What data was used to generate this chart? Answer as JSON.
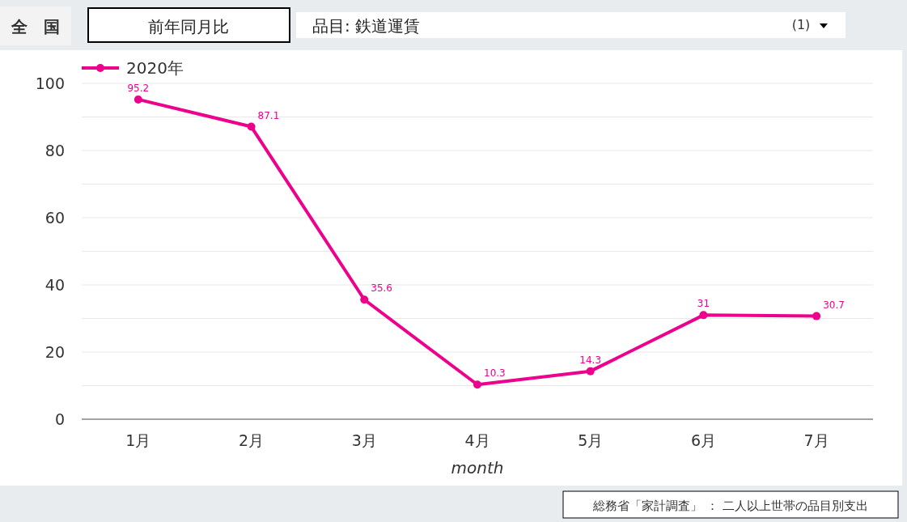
{
  "chart_data": {
    "type": "line",
    "xlabel": "month",
    "categories": [
      "1月",
      "2月",
      "3月",
      "4月",
      "5月",
      "6月",
      "7月"
    ],
    "series": [
      {
        "name": "2020年",
        "color": "#ec008c",
        "values": [
          95.2,
          87.1,
          35.6,
          10.3,
          14.3,
          31,
          30.7
        ]
      }
    ],
    "ylim": [
      0,
      100
    ],
    "yticks": [
      0,
      {
        "value": 10,
        "label": null
      },
      20,
      {
        "value": 30,
        "label": null
      },
      40,
      {
        "value": 50,
        "label": null
      },
      60,
      {
        "value": 70,
        "label": null
      },
      80,
      {
        "value": 90,
        "label": null
      },
      100
    ],
    "grid": "y",
    "legend": "top left",
    "marker": "circle",
    "line_style": "solid",
    "data_labels": true,
    "annotations": [
      "全　国",
      "前年同月比",
      "品目: 鉄道運賃",
      "(1)",
      "総務省「家計調査」 ： 二人以上世帯の品目別支出"
    ]
  }
}
